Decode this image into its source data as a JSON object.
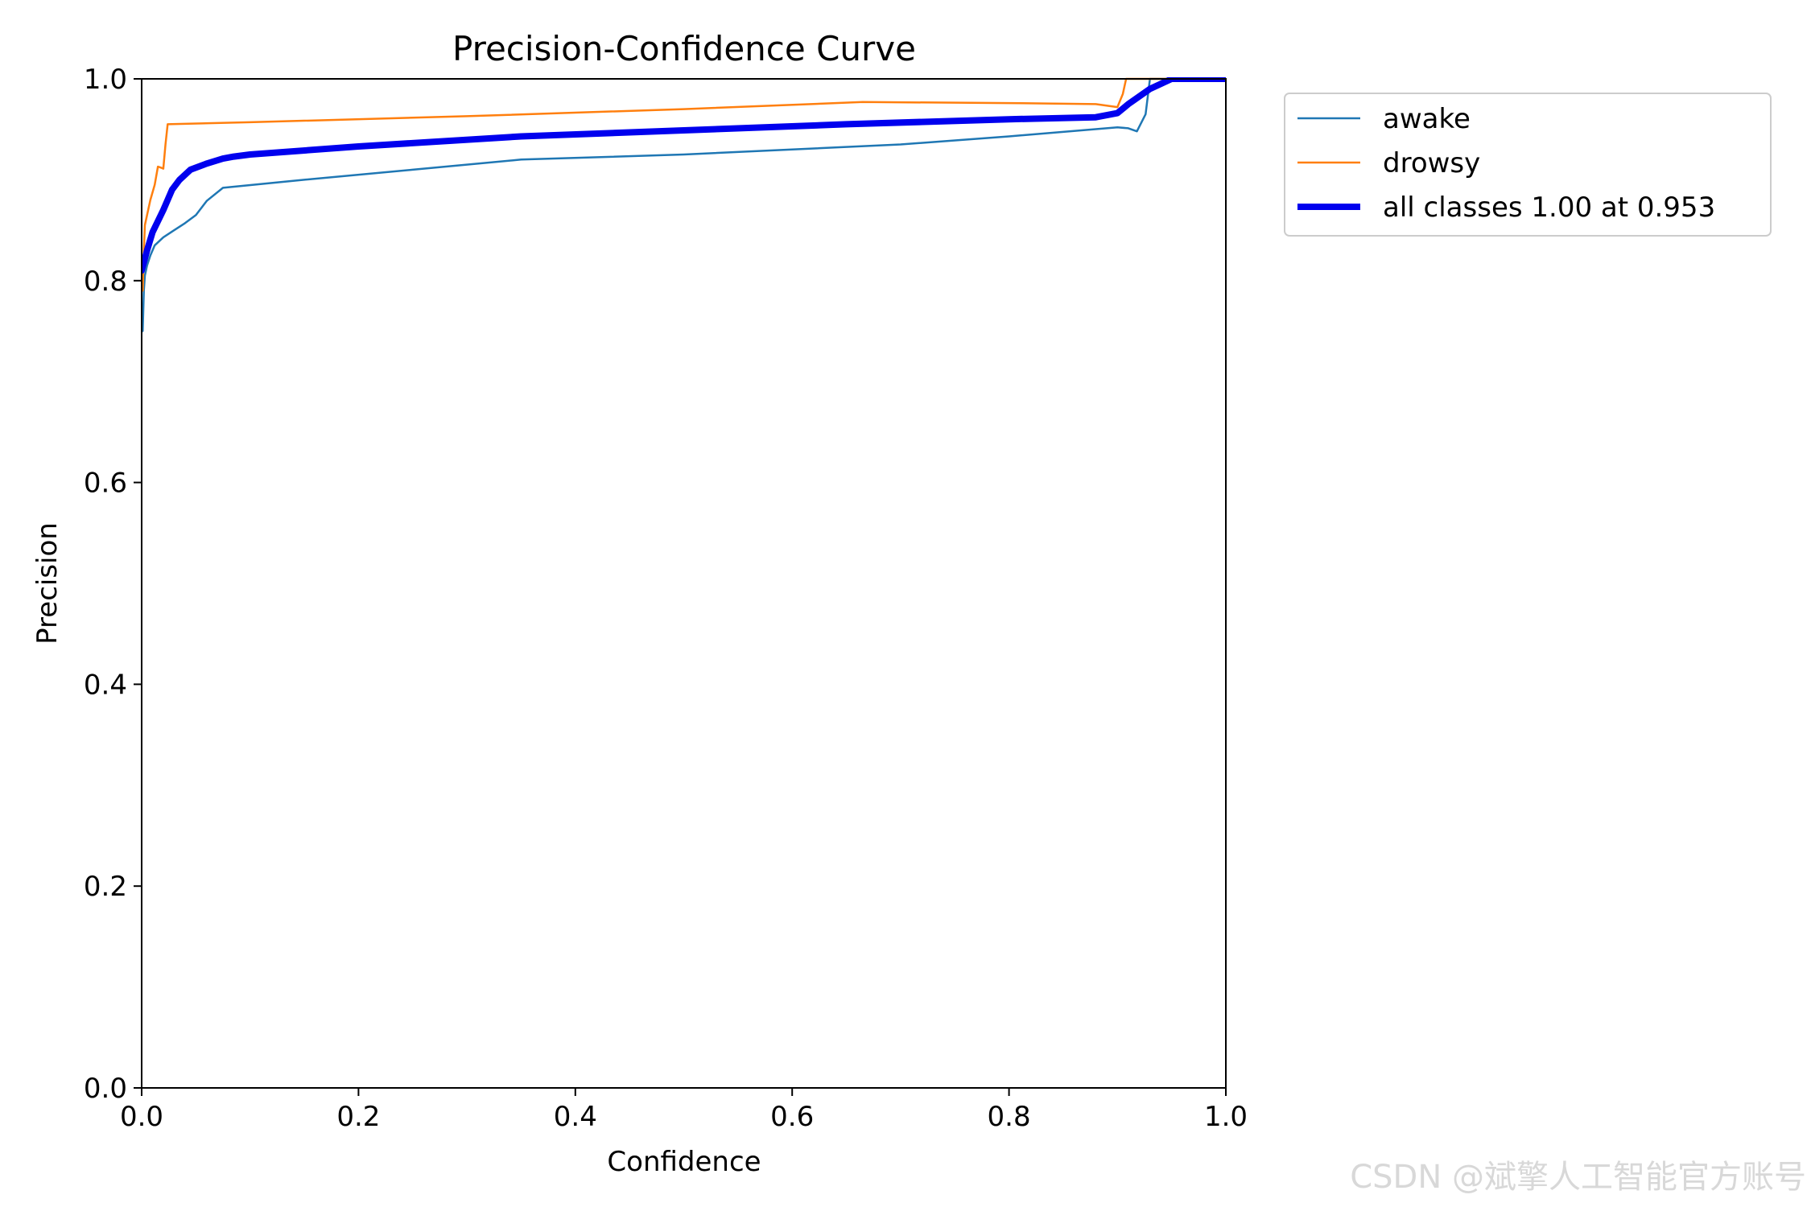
{
  "chart_data": {
    "type": "line",
    "title": "Precision-Confidence Curve",
    "xlabel": "Confidence",
    "ylabel": "Precision",
    "xlim": [
      0,
      1
    ],
    "ylim": [
      0,
      1
    ],
    "xticks": [
      "0.0",
      "0.2",
      "0.4",
      "0.6",
      "0.8",
      "1.0"
    ],
    "yticks": [
      "0.0",
      "0.2",
      "0.4",
      "0.6",
      "0.8",
      "1.0"
    ],
    "grid": false,
    "legend_position": "outside-top-right",
    "series": [
      {
        "name": "awake",
        "color": "#1f77b4",
        "x": [
          0.001,
          0.002,
          0.003,
          0.005,
          0.008,
          0.012,
          0.02,
          0.03,
          0.04,
          0.05,
          0.055,
          0.06,
          0.075,
          0.15,
          0.25,
          0.35,
          0.5,
          0.7,
          0.8,
          0.9,
          0.91,
          0.918,
          0.926,
          0.93,
          0.95,
          1.0
        ],
        "values": [
          0.75,
          0.79,
          0.805,
          0.815,
          0.825,
          0.835,
          0.843,
          0.85,
          0.857,
          0.865,
          0.872,
          0.879,
          0.892,
          0.9,
          0.91,
          0.92,
          0.925,
          0.935,
          0.943,
          0.952,
          0.951,
          0.948,
          0.965,
          1.0,
          1.0,
          1.0
        ]
      },
      {
        "name": "drowsy",
        "color": "#ff7f0e",
        "x": [
          0.001,
          0.002,
          0.003,
          0.005,
          0.008,
          0.012,
          0.015,
          0.018,
          0.02,
          0.022,
          0.024,
          0.1,
          0.3,
          0.5,
          0.665,
          0.8,
          0.88,
          0.9,
          0.905,
          0.908,
          0.93,
          1.0
        ],
        "values": [
          0.79,
          0.83,
          0.855,
          0.865,
          0.88,
          0.895,
          0.913,
          0.912,
          0.911,
          0.935,
          0.955,
          0.957,
          0.963,
          0.97,
          0.977,
          0.976,
          0.975,
          0.972,
          0.985,
          1.0,
          1.0,
          1.0
        ]
      },
      {
        "name": "all classes 1.00 at 0.953",
        "color": "#0000ee",
        "x": [
          0.0,
          0.005,
          0.01,
          0.02,
          0.028,
          0.035,
          0.045,
          0.06,
          0.075,
          0.085,
          0.1,
          0.2,
          0.35,
          0.5,
          0.65,
          0.8,
          0.88,
          0.9,
          0.91,
          0.93,
          0.95,
          1.0
        ],
        "values": [
          0.81,
          0.83,
          0.848,
          0.87,
          0.89,
          0.9,
          0.91,
          0.916,
          0.921,
          0.923,
          0.925,
          0.933,
          0.943,
          0.949,
          0.955,
          0.96,
          0.962,
          0.966,
          0.975,
          0.99,
          1.0,
          1.0
        ]
      }
    ]
  }
}
